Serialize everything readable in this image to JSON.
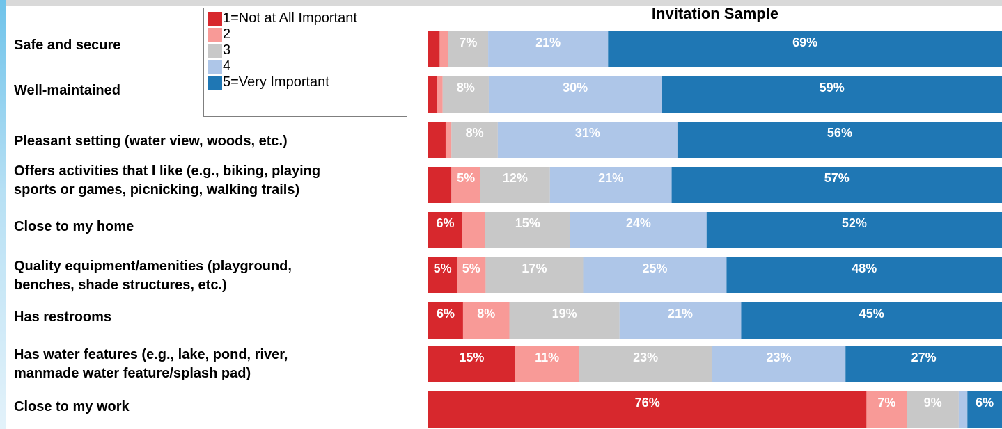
{
  "chart_data": {
    "type": "bar",
    "orientation": "horizontal",
    "stacked": "100%",
    "title": "Invitation Sample",
    "categories": [
      "Safe and secure",
      "Well-maintained",
      "Pleasant setting (water view, woods, etc.)",
      "Offers activities that I like (e.g., biking, playing\nsports or games, picnicking, walking trails)",
      "Close to my home",
      "Quality equipment/amenities (playground,\nbenches, shade structures, etc.)",
      "Has restrooms",
      "Has water features (e.g., lake, pond, river,\nmanmade water feature/splash pad)",
      "Close to my work"
    ],
    "series": [
      {
        "name": "1=Not at All Important",
        "color": "#d7282d",
        "values": [
          2,
          1.5,
          3,
          4,
          6,
          5,
          6,
          15,
          76
        ],
        "labels": [
          "",
          "",
          "",
          "",
          "6%",
          "5%",
          "6%",
          "15%",
          "76%"
        ]
      },
      {
        "name": "2",
        "color": "#f89a97",
        "values": [
          1.5,
          1,
          1,
          5,
          4,
          5,
          8,
          11,
          7
        ],
        "labels": [
          "",
          "",
          "",
          "5%",
          "",
          "5%",
          "8%",
          "11%",
          "7%"
        ]
      },
      {
        "name": "3",
        "color": "#c8c8c8",
        "values": [
          7,
          8,
          8,
          12,
          15,
          17,
          19,
          23,
          9
        ],
        "labels": [
          "7%",
          "8%",
          "8%",
          "12%",
          "15%",
          "17%",
          "19%",
          "23%",
          "9%"
        ]
      },
      {
        "name": "4",
        "color": "#aec6e8",
        "values": [
          21,
          30,
          31,
          21,
          24,
          25,
          21,
          23,
          1.5
        ],
        "labels": [
          "21%",
          "30%",
          "31%",
          "21%",
          "24%",
          "25%",
          "21%",
          "23%",
          ""
        ]
      },
      {
        "name": "5=Very Important",
        "color": "#1f77b4",
        "values": [
          69,
          59,
          56,
          57,
          52,
          48,
          45,
          27,
          6
        ],
        "labels": [
          "69%",
          "59%",
          "56%",
          "57%",
          "52%",
          "48%",
          "45%",
          "27%",
          "6%"
        ]
      }
    ],
    "xlim": [
      0,
      100
    ],
    "legend_position": "top-left",
    "grid": false
  }
}
